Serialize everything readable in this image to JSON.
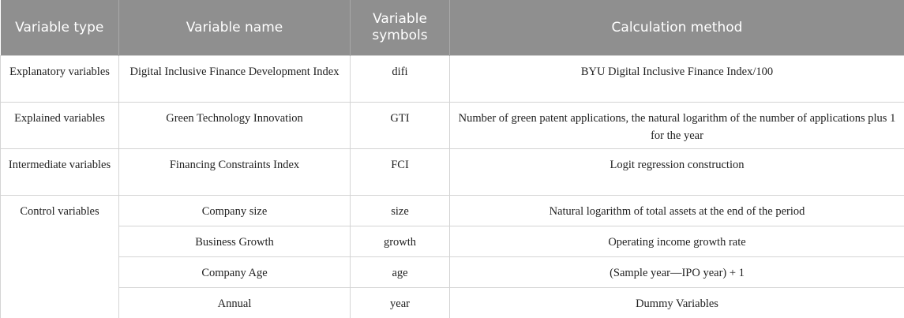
{
  "table": {
    "header": [
      "Variable type",
      "Variable name",
      "Variable symbols",
      "Calculation method"
    ],
    "rows": [
      [
        "Explanatory variables",
        "Digital Inclusive Finance Development Index",
        "difi",
        "BYU Digital Inclusive Finance Index/100"
      ],
      [
        "Explained variables",
        "Green Technology Innovation",
        "GTI",
        "Number of green patent applications, the natural logarithm of the number of applications plus 1 for the year"
      ],
      [
        "Intermediate variables",
        "Financing Constraints Index",
        "FCI",
        "Logit regression construction"
      ],
      [
        "Control variables",
        "Company size",
        "size",
        "Natural logarithm of total assets at the end of the period"
      ],
      [
        "Business Growth",
        "growth",
        "Operating income growth rate"
      ],
      [
        "Company Age",
        "age",
        "(Sample year—IPO year) + 1"
      ],
      [
        "Annual",
        "year",
        "Dummy Variables"
      ]
    ]
  }
}
